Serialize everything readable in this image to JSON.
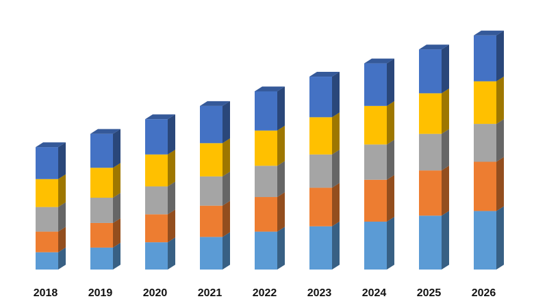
{
  "chart_data": {
    "type": "bar",
    "stacked": true,
    "style": "3d-column",
    "categories": [
      "2018",
      "2019",
      "2020",
      "2021",
      "2022",
      "2023",
      "2024",
      "2025",
      "2026"
    ],
    "series": [
      {
        "values": [
          26,
          33,
          41,
          49,
          57,
          65,
          72,
          81,
          88
        ],
        "color": "#5B9BD5"
      },
      {
        "values": [
          31,
          37,
          42,
          47,
          52,
          58,
          63,
          68,
          74
        ],
        "color": "#ED7D31"
      },
      {
        "values": [
          37,
          38,
          42,
          44,
          47,
          50,
          53,
          55,
          57
        ],
        "color": "#A5A5A5"
      },
      {
        "values": [
          42,
          45,
          48,
          50,
          53,
          56,
          58,
          61,
          64
        ],
        "color": "#FFC000"
      },
      {
        "values": [
          48,
          51,
          53,
          56,
          59,
          61,
          64,
          66,
          69
        ],
        "color": "#4472C4"
      }
    ],
    "ylim": [
      0,
      360
    ],
    "grid": false,
    "legend": "none"
  }
}
